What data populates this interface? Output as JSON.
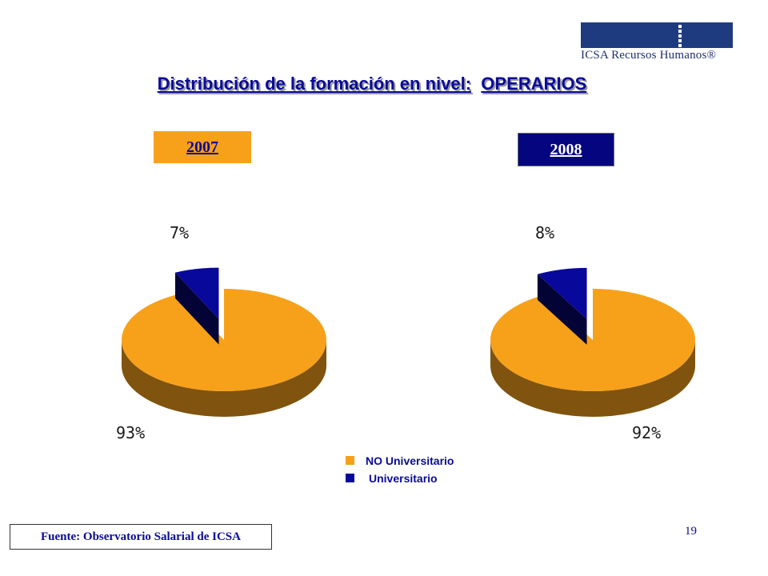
{
  "logo": {
    "text": "ICSA Recursos Humanos®"
  },
  "title": {
    "part1": "Distribución de la formación en nivel:",
    "part2": "OPERARIOS"
  },
  "chart_data": [
    {
      "type": "pie",
      "title": "2007",
      "categories": [
        "NO Universitario",
        "Universitario"
      ],
      "values": [
        93,
        7
      ],
      "value_labels": [
        "93%",
        "7%"
      ],
      "colors": [
        "#f7a11a",
        "#08089a"
      ]
    },
    {
      "type": "pie",
      "title": "2008",
      "categories": [
        "NO Universitario",
        "Universitario"
      ],
      "values": [
        92,
        8
      ],
      "value_labels": [
        "92%",
        "8%"
      ],
      "colors": [
        "#f7a11a",
        "#08089a"
      ]
    }
  ],
  "legend": [
    {
      "label": "NO Universitario",
      "color": "#f7a11a"
    },
    {
      "label": "Universitario",
      "color": "#08089a"
    }
  ],
  "footer": {
    "source": "Fuente: Observatorio Salarial de ICSA",
    "page_number": "19"
  }
}
